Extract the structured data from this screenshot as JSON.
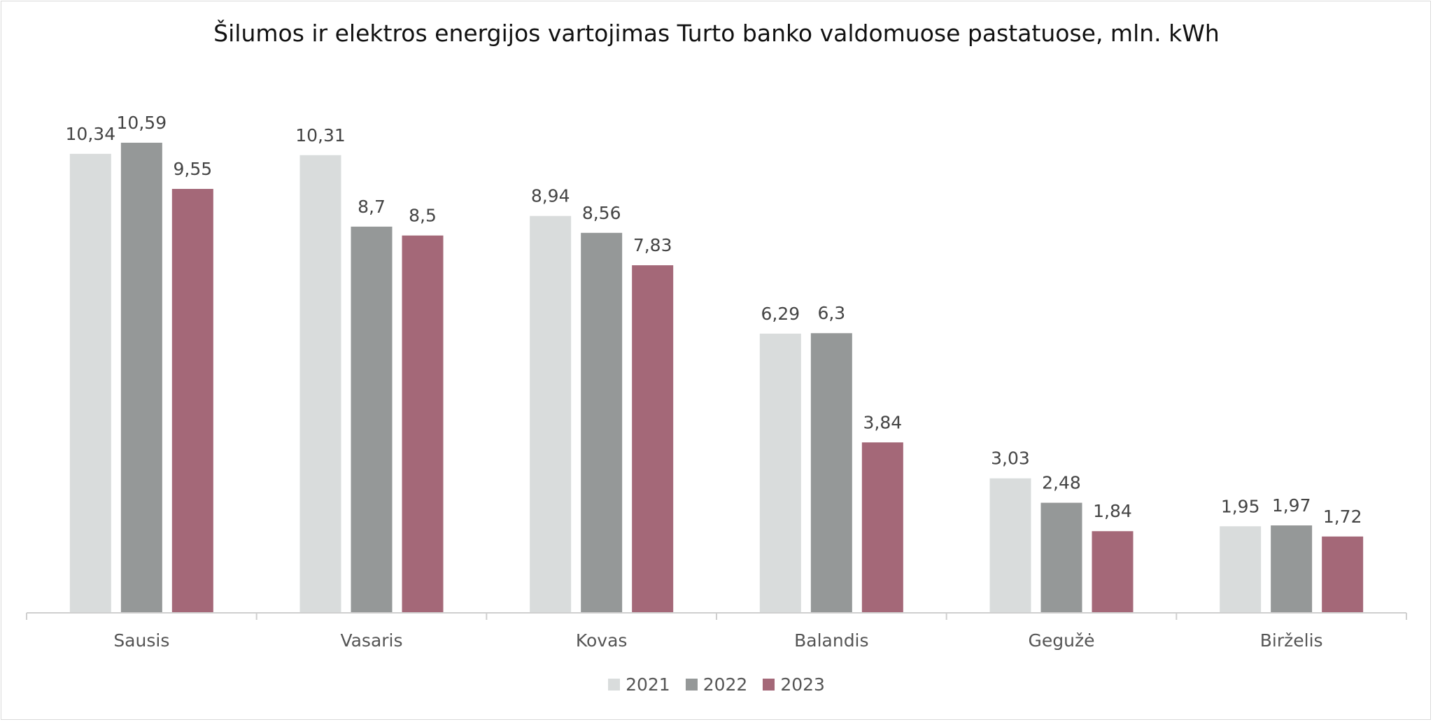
{
  "chart_data": {
    "type": "bar",
    "title": "Šilumos ir elektros energijos vartojimas Turto banko valdomuose pastatuose, mln. kWh",
    "categories": [
      "Sausis",
      "Vasaris",
      "Kovas",
      "Balandis",
      "Gegužė",
      "Birželis"
    ],
    "series": [
      {
        "name": "2021",
        "color": "#d9dcdc",
        "values": [
          10.34,
          10.31,
          8.94,
          6.29,
          3.03,
          1.95
        ],
        "labels": [
          "10,34",
          "10,31",
          "8,94",
          "6,29",
          "3,03",
          "1,95"
        ]
      },
      {
        "name": "2022",
        "color": "#959898",
        "values": [
          10.59,
          8.7,
          8.56,
          6.3,
          2.48,
          1.97
        ],
        "labels": [
          "10,59",
          "8,7",
          "8,56",
          "6,3",
          "2,48",
          "1,97"
        ]
      },
      {
        "name": "2023",
        "color": "#a46878",
        "values": [
          9.55,
          8.5,
          7.83,
          3.84,
          1.84,
          1.72
        ],
        "labels": [
          "9,55",
          "8,5",
          "7,83",
          "3,84",
          "1,84",
          "1,72"
        ]
      }
    ],
    "ylim": [
      0,
      10.59
    ],
    "grid": false,
    "legend": "bottom"
  }
}
